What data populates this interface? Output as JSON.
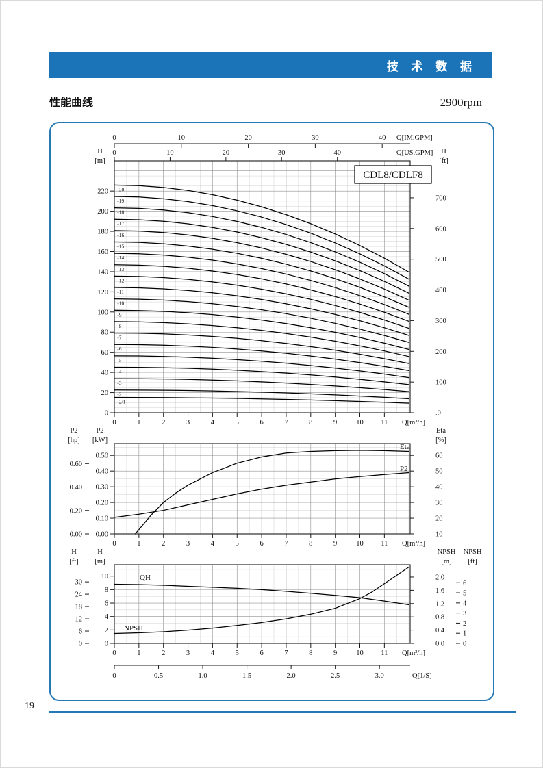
{
  "header": {
    "title": "技 术 数 据"
  },
  "section": {
    "title": "性能曲线",
    "rpm": "2900rpm"
  },
  "footer": {
    "page_number": "19"
  },
  "colors": {
    "header_bg": "#1b74b8",
    "frame_border": "#2679b5",
    "footer_rule": "#2478b6"
  },
  "chart_data": [
    {
      "type": "line",
      "label_box": "CDL8/CDLF8",
      "x_axis": {
        "title": "Q[m³/h]",
        "ticks": [
          0,
          1,
          2,
          3,
          4,
          5,
          6,
          7,
          8,
          9,
          10,
          11
        ],
        "range": [
          0,
          12.05
        ]
      },
      "x_top_im": {
        "title": "Q[IM.GPM]",
        "ticks": [
          0,
          10,
          20,
          30,
          40
        ]
      },
      "x_top_us": {
        "title": "Q[US.GPM]",
        "ticks": [
          0,
          10,
          20,
          30,
          40
        ]
      },
      "y_left": {
        "title": [
          "H",
          "[m]"
        ],
        "ticks": [
          220,
          200,
          180,
          160,
          140,
          120,
          100,
          80,
          60,
          40,
          20,
          0
        ],
        "range": [
          0,
          250
        ]
      },
      "y_right": {
        "title": [
          "H",
          "[ft]"
        ],
        "ticks": [
          "700",
          "600",
          "500",
          "400",
          "300",
          "200",
          "100",
          ".0"
        ]
      },
      "q": [
        0,
        1,
        2,
        3,
        4,
        5,
        6,
        7,
        8,
        9,
        10,
        11,
        12
      ],
      "per_stage_head": [
        11.3,
        11.27,
        11.18,
        11.03,
        10.82,
        10.55,
        10.22,
        9.83,
        9.38,
        8.87,
        8.3,
        7.67,
        6.98
      ],
      "series": [
        {
          "label": "-20",
          "stages": 20
        },
        {
          "label": "-19",
          "stages": 19
        },
        {
          "label": "-18",
          "stages": 18
        },
        {
          "label": "-17",
          "stages": 17
        },
        {
          "label": "-16",
          "stages": 16
        },
        {
          "label": "-15",
          "stages": 15
        },
        {
          "label": "-14",
          "stages": 14
        },
        {
          "label": "-13",
          "stages": 13
        },
        {
          "label": "-12",
          "stages": 12
        },
        {
          "label": "-11",
          "stages": 11
        },
        {
          "label": "-10",
          "stages": 10
        },
        {
          "label": "-9",
          "stages": 9
        },
        {
          "label": "-8",
          "stages": 8
        },
        {
          "label": "-7",
          "stages": 7
        },
        {
          "label": "-6",
          "stages": 6
        },
        {
          "label": "-5",
          "stages": 5
        },
        {
          "label": "-4",
          "stages": 4
        },
        {
          "label": "-3",
          "stages": 3
        },
        {
          "label": "-2",
          "stages": 2
        },
        {
          "label": "-2/1",
          "stages": 1.35
        }
      ]
    },
    {
      "type": "line",
      "x_axis": {
        "title": "Q[m³/h]",
        "ticks": [
          0,
          1,
          2,
          3,
          4,
          5,
          6,
          7,
          8,
          9,
          10,
          11
        ]
      },
      "y_left_hp": {
        "title": [
          "P2",
          "[hp]"
        ],
        "ticks": [
          "0.60",
          "0.40",
          "0.20",
          "0.00"
        ]
      },
      "y_left_kw": {
        "title": [
          "P2",
          "[kW]"
        ],
        "ticks": [
          "0.50",
          "0.40",
          "0.30",
          "0.20",
          "0.10",
          "0.00"
        ],
        "range": [
          0,
          0.575
        ]
      },
      "y_right_eta": {
        "title": [
          "Eta",
          "[%]"
        ],
        "ticks": [
          60,
          50,
          40,
          30,
          20,
          10
        ],
        "range": [
          10,
          67.5
        ]
      },
      "series": [
        {
          "name": "Eta",
          "axis": "eta",
          "points": [
            [
              0.85,
              10
            ],
            [
              1.5,
              22
            ],
            [
              2,
              30
            ],
            [
              2.5,
              36
            ],
            [
              3,
              41
            ],
            [
              4,
              49
            ],
            [
              5,
              55
            ],
            [
              6,
              59
            ],
            [
              7,
              61.5
            ],
            [
              8,
              62.5
            ],
            [
              9,
              63
            ],
            [
              10,
              63.2
            ],
            [
              11,
              63
            ],
            [
              12,
              62.5
            ]
          ]
        },
        {
          "name": "P2",
          "axis": "kw",
          "points": [
            [
              0,
              0.105
            ],
            [
              1,
              0.125
            ],
            [
              2,
              0.15
            ],
            [
              3,
              0.185
            ],
            [
              4,
              0.22
            ],
            [
              5,
              0.255
            ],
            [
              6,
              0.285
            ],
            [
              7,
              0.31
            ],
            [
              8,
              0.33
            ],
            [
              9,
              0.35
            ],
            [
              10,
              0.365
            ],
            [
              11,
              0.378
            ],
            [
              12,
              0.39
            ]
          ]
        }
      ]
    },
    {
      "type": "line",
      "x_axis": {
        "title": "Q[m³/h]",
        "ticks": [
          0,
          1,
          2,
          3,
          4,
          5,
          6,
          7,
          8,
          9,
          10,
          11
        ]
      },
      "x_axis_ls": {
        "title": "Q[1/S]",
        "ticks": [
          "0",
          "0.5",
          "1.0",
          "1.5",
          "2.0",
          "2.5",
          "3.0"
        ]
      },
      "y_left_ft": {
        "title": [
          "H",
          "[ft]"
        ],
        "ticks": [
          30,
          24,
          18,
          12,
          6,
          0
        ]
      },
      "y_left_m": {
        "title": [
          "H",
          "[m]"
        ],
        "ticks": [
          10,
          8,
          6,
          4,
          2,
          0
        ],
        "range": [
          0,
          11.7
        ]
      },
      "y_right_npsh_m": {
        "title": [
          "NPSH",
          "[m]"
        ],
        "ticks": [
          "2.0",
          "1.6",
          "1.2",
          "0.8",
          "0.4",
          "0.0"
        ],
        "range": [
          0,
          2.37
        ]
      },
      "y_right_npsh_ft": {
        "title": [
          "NPSH",
          "[ft]"
        ],
        "ticks": [
          6,
          5,
          4,
          3,
          2,
          1,
          0
        ]
      },
      "series": [
        {
          "name": "QH",
          "axis": "m",
          "points": [
            [
              0,
              8.8
            ],
            [
              1,
              8.75
            ],
            [
              2,
              8.65
            ],
            [
              3,
              8.5
            ],
            [
              4,
              8.35
            ],
            [
              5,
              8.2
            ],
            [
              6,
              8.0
            ],
            [
              7,
              7.75
            ],
            [
              8,
              7.45
            ],
            [
              9,
              7.15
            ],
            [
              10,
              6.8
            ],
            [
              11,
              6.3
            ],
            [
              12,
              5.75
            ]
          ]
        },
        {
          "name": "NPSH",
          "axis": "npsh",
          "points": [
            [
              0,
              0.3
            ],
            [
              1,
              0.32
            ],
            [
              2,
              0.35
            ],
            [
              3,
              0.4
            ],
            [
              4,
              0.46
            ],
            [
              5,
              0.54
            ],
            [
              6,
              0.63
            ],
            [
              7,
              0.74
            ],
            [
              8,
              0.88
            ],
            [
              9,
              1.06
            ],
            [
              10,
              1.35
            ],
            [
              10.5,
              1.55
            ],
            [
              11,
              1.8
            ],
            [
              11.5,
              2.05
            ],
            [
              12,
              2.3
            ]
          ]
        }
      ]
    }
  ]
}
